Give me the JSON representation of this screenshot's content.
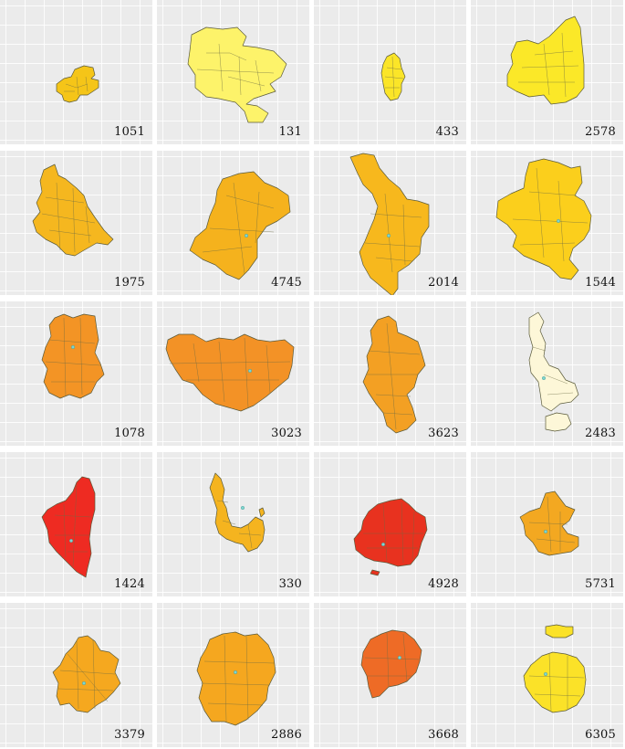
{
  "panels": [
    {
      "label": "1051",
      "color": "#f5c518"
    },
    {
      "label": "131",
      "color": "#fdf36a"
    },
    {
      "label": "433",
      "color": "#fbe528"
    },
    {
      "label": "2578",
      "color": "#fbe828"
    },
    {
      "label": "1975",
      "color": "#f5b71f"
    },
    {
      "label": "4745",
      "color": "#f5b21d"
    },
    {
      "label": "2014",
      "color": "#f7b81d"
    },
    {
      "label": "1544",
      "color": "#fbcf1c"
    },
    {
      "label": "1078",
      "color": "#f39425"
    },
    {
      "label": "3023",
      "color": "#f39226"
    },
    {
      "label": "3623",
      "color": "#f3a023"
    },
    {
      "label": "2483",
      "color": "#fdf7d8"
    },
    {
      "label": "1424",
      "color": "#ee2b22"
    },
    {
      "label": "330",
      "color": "#f5b41f"
    },
    {
      "label": "4928",
      "color": "#e8321f"
    },
    {
      "label": "5731",
      "color": "#f3a821"
    },
    {
      "label": "3379",
      "color": "#f5a81f"
    },
    {
      "label": "2886",
      "color": "#f5a71f"
    },
    {
      "label": "3668",
      "color": "#ee6b26"
    },
    {
      "label": "6305",
      "color": "#fbe228"
    }
  ]
}
